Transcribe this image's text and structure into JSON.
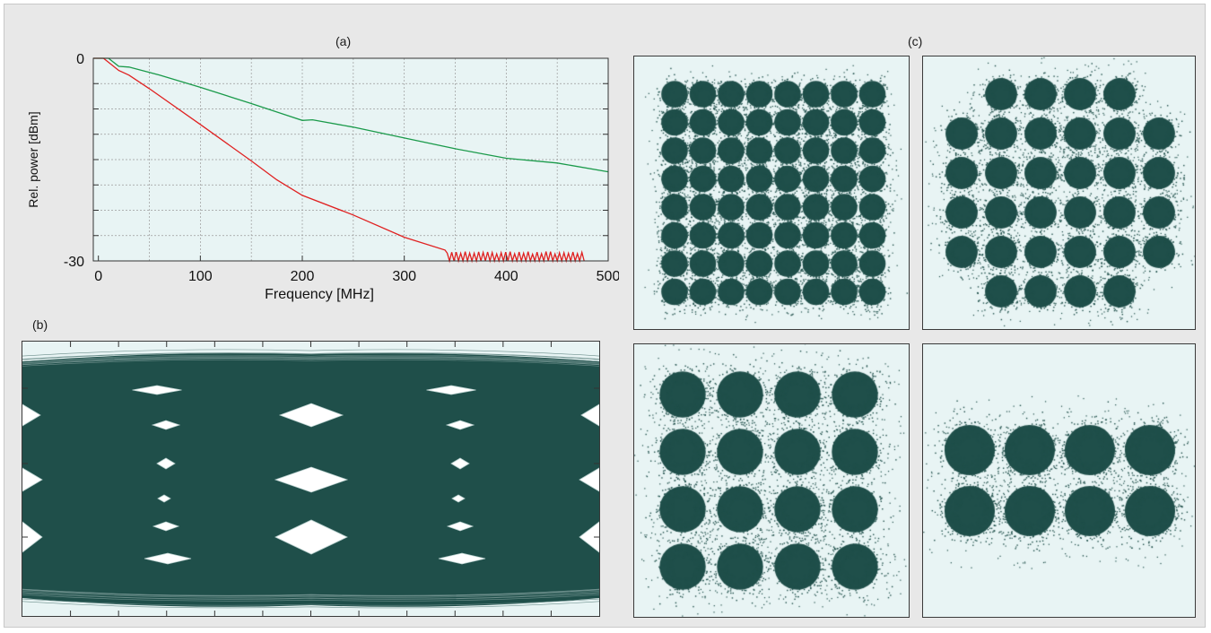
{
  "panels": {
    "a": "(a)",
    "b": "(b)",
    "c": "(c)"
  },
  "colors": {
    "frame_bg": "#e8e8e8",
    "plot_bg": "#e8f4f4",
    "trace_fill": "#1f4f4a",
    "green_series": "#1a9a4a",
    "red_series": "#e02020",
    "grid": "#9a9a9a"
  },
  "chart_data": [
    {
      "id": "a",
      "type": "line",
      "title": "",
      "xlabel": "Frequency [MHz]",
      "ylabel": "Rel. power [dBm]",
      "xlim": [
        -5,
        500
      ],
      "ylim": [
        -30,
        0
      ],
      "xticks": [
        0,
        100,
        200,
        300,
        400,
        500
      ],
      "yticks": [
        -30,
        0
      ],
      "ytick_labels": [
        "-30",
        "0"
      ],
      "grid": true,
      "series": [
        {
          "color": "#1a9a4a",
          "x": [
            -5,
            10,
            20,
            30,
            60,
            100,
            150,
            200,
            210,
            250,
            300,
            350,
            400,
            450,
            500
          ],
          "y": [
            0,
            0,
            -1.2,
            -1.3,
            -2.5,
            -4.3,
            -6.7,
            -9.2,
            -9.1,
            -10.2,
            -11.8,
            -13.4,
            -14.8,
            -15.5,
            -16.8
          ]
        },
        {
          "color": "#e02020",
          "x": [
            -5,
            5,
            20,
            30,
            50,
            100,
            150,
            175,
            200,
            250,
            300,
            340
          ],
          "y": [
            0,
            0,
            -1.8,
            -2.5,
            -4.5,
            -9.8,
            -15.2,
            -18,
            -20.3,
            -23.2,
            -26.5,
            -28.4
          ],
          "noise_from_x": 340,
          "noise_to_x": 475,
          "noise_range_y": [
            -30,
            -28.2
          ]
        }
      ]
    },
    {
      "id": "b",
      "type": "eye-diagram",
      "description_levels": 8,
      "periods": 2,
      "xticks_count": 12
    },
    {
      "id": "c1",
      "type": "scatter",
      "constellation": "64-QAM",
      "grid_points": "8x8"
    },
    {
      "id": "c2",
      "type": "scatter",
      "constellation": "32-QAM cross",
      "grid_points": "6x6 minus corners"
    },
    {
      "id": "c3",
      "type": "scatter",
      "constellation": "16-QAM",
      "grid_points": "4x4"
    },
    {
      "id": "c4",
      "type": "scatter",
      "constellation": "8-QAM",
      "grid_points": "4x2"
    }
  ]
}
